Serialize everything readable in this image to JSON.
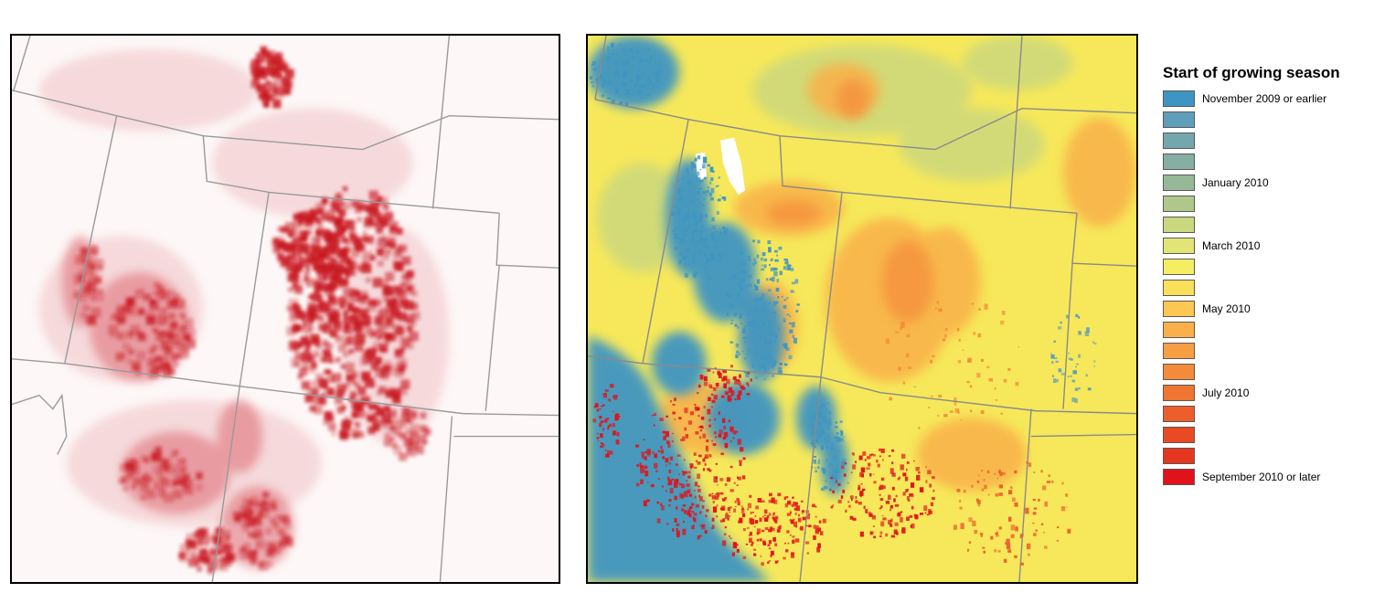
{
  "legend": {
    "title": "Start of growing season",
    "items": [
      {
        "color": "#3f95c2",
        "label": "November 2009 or earlier"
      },
      {
        "color": "#5f9eb8",
        "label": ""
      },
      {
        "color": "#74a6ad",
        "label": ""
      },
      {
        "color": "#86aea2",
        "label": ""
      },
      {
        "color": "#97b896",
        "label": "January 2010"
      },
      {
        "color": "#b0c78c",
        "label": ""
      },
      {
        "color": "#c9d77f",
        "label": ""
      },
      {
        "color": "#e2e575",
        "label": "March 2010"
      },
      {
        "color": "#f5ee62",
        "label": ""
      },
      {
        "color": "#fadf5a",
        "label": ""
      },
      {
        "color": "#fcc752",
        "label": "May 2010"
      },
      {
        "color": "#f9b04a",
        "label": ""
      },
      {
        "color": "#f79f45",
        "label": ""
      },
      {
        "color": "#f48b3b",
        "label": ""
      },
      {
        "color": "#f07432",
        "label": "July 2010"
      },
      {
        "color": "#ec5e2b",
        "label": ""
      },
      {
        "color": "#e84a24",
        "label": ""
      },
      {
        "color": "#e5371f",
        "label": ""
      },
      {
        "color": "#e0131b",
        "label": "September 2010 or later"
      }
    ]
  },
  "colors": {
    "boundary": "#9a9a9a",
    "left_background": "#fdf7f7",
    "left_intensity": "#c8141c",
    "right_background": "#f6e85a"
  }
}
